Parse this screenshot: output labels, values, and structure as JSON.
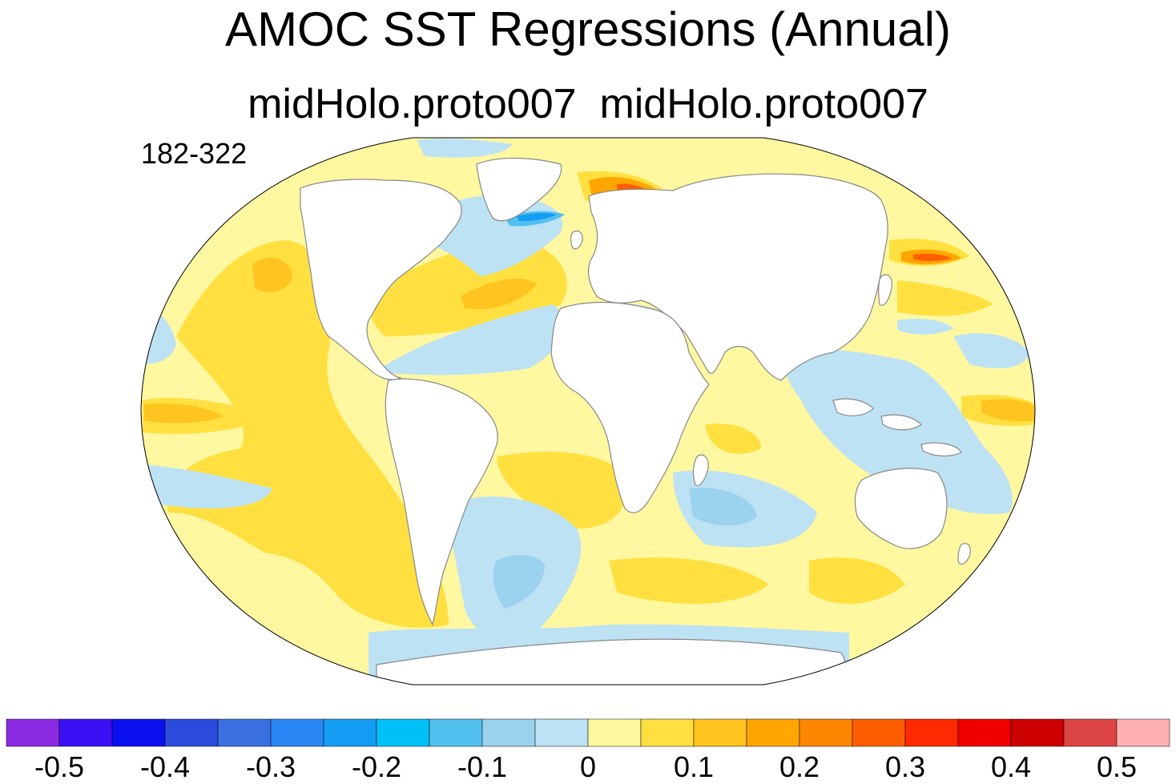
{
  "title": "AMOC SST Regressions (Annual)",
  "subtitle": "midHolo.proto007  midHolo.proto007",
  "year_range": "182-322",
  "colorbar": {
    "ticks": [
      "-0.5",
      "-0.4",
      "-0.3",
      "-0.2",
      "-0.1",
      "0",
      "0.1",
      "0.2",
      "0.3",
      "0.4",
      "0.5"
    ],
    "colors": [
      "#8a2be2",
      "#3c10f5",
      "#0a10f0",
      "#2a4bdc",
      "#3a70e0",
      "#2a86f4",
      "#139df5",
      "#00c0f8",
      "#52c0ef",
      "#9bd2ee",
      "#bde2f4",
      "#fff8a0",
      "#ffe040",
      "#ffc420",
      "#ffa600",
      "#ff8600",
      "#ff5e00",
      "#ff2a00",
      "#f00000",
      "#cc0000",
      "#dd4444",
      "#ffb0b0"
    ]
  },
  "map_colors": {
    "background": "#ffffff",
    "land": "#ffffff",
    "coast": "#888888",
    "lvl_neg": "#bde2f4",
    "lvl_neg2": "#9bd2ee",
    "lvl_neg3": "#52c0ef",
    "lvl_neg4": "#139df5",
    "lvl_pos": "#fff8a0",
    "lvl_pos2": "#ffe040",
    "lvl_pos3": "#ffc420",
    "lvl_pos4": "#ffa600",
    "lvl_pos5": "#ff5e00",
    "lvl_pos6": "#dd3300"
  }
}
